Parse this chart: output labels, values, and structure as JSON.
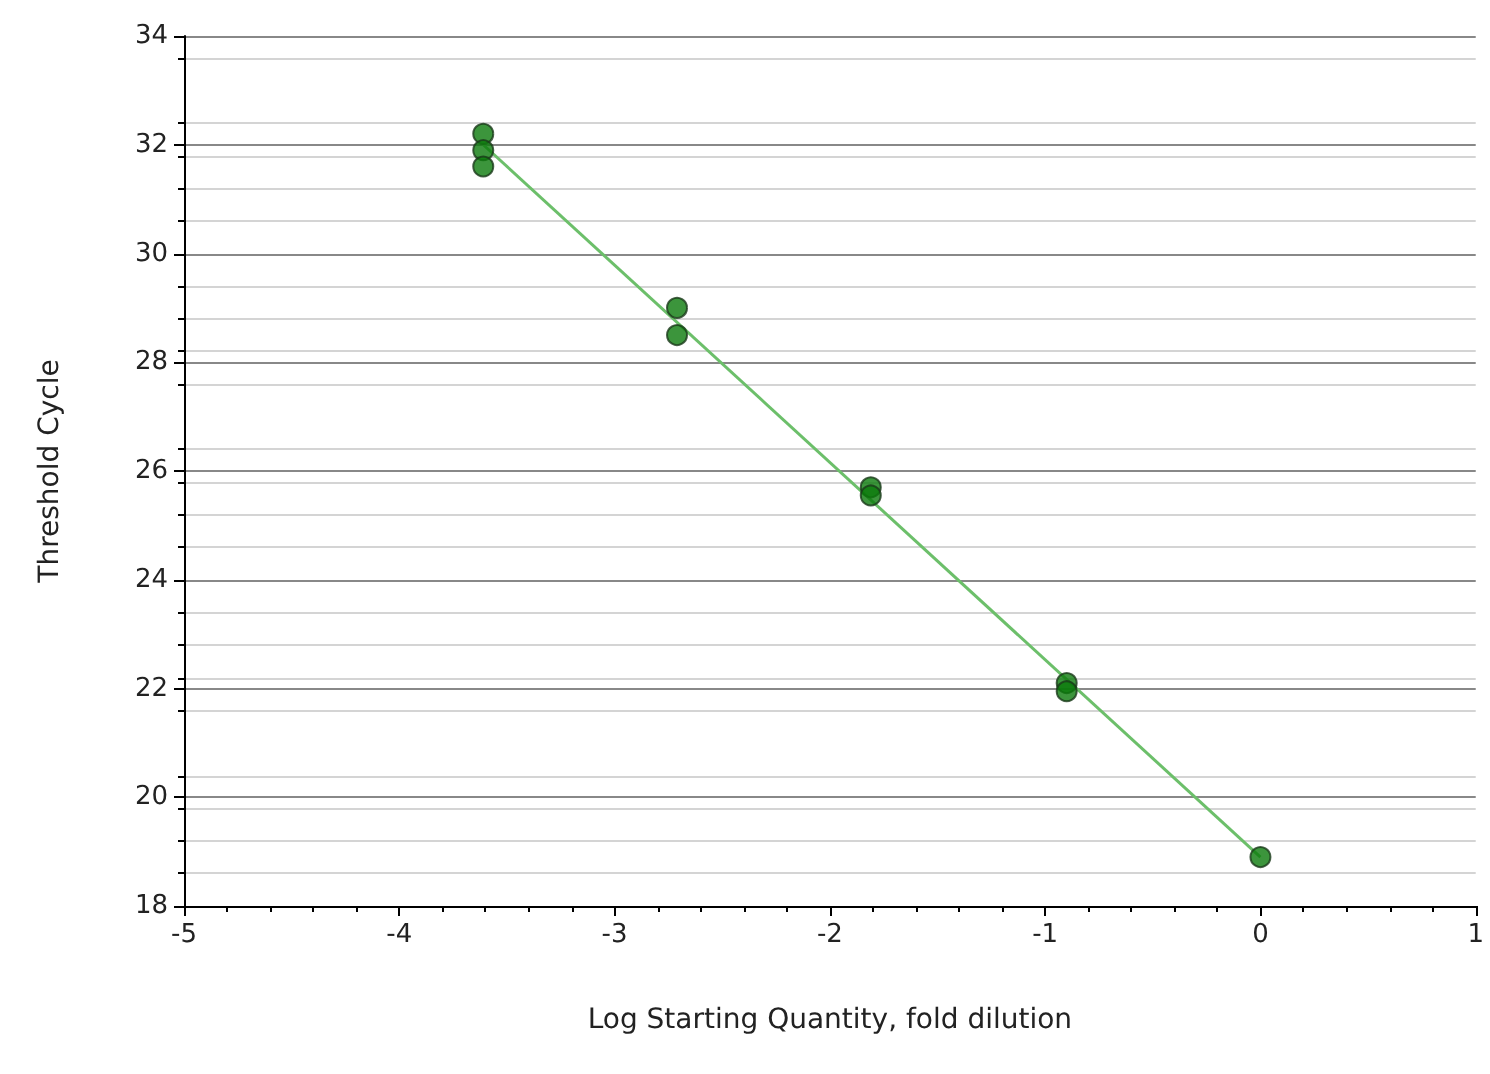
{
  "chart_data": {
    "type": "scatter",
    "xlabel": "Log Starting Quantity, fold dilution",
    "ylabel": "Threshold Cycle",
    "x": [
      -3.61,
      -3.61,
      -3.61,
      -2.71,
      -2.71,
      -1.81,
      -1.81,
      -0.9,
      -0.9,
      0
    ],
    "series": [
      {
        "color": "#0b7a0b",
        "values": [
          32.2,
          31.9,
          31.6,
          29.0,
          28.5,
          25.7,
          25.55,
          22.1,
          21.95,
          18.9
        ]
      },
      {
        "type": "line",
        "marker": "none",
        "color": "#6cbf6a",
        "x": [
          -3.61,
          0
        ],
        "values": [
          32.0,
          18.9
        ]
      }
    ],
    "xlim": [
      -5,
      1
    ],
    "xticks": [
      -5,
      -4,
      -3,
      -2,
      -1,
      0,
      1
    ],
    "ylim": [
      18,
      34
    ],
    "yticks": [
      18,
      20,
      22,
      24,
      26,
      28,
      30,
      32,
      34
    ],
    "grid": "y",
    "marker": "circle"
  }
}
